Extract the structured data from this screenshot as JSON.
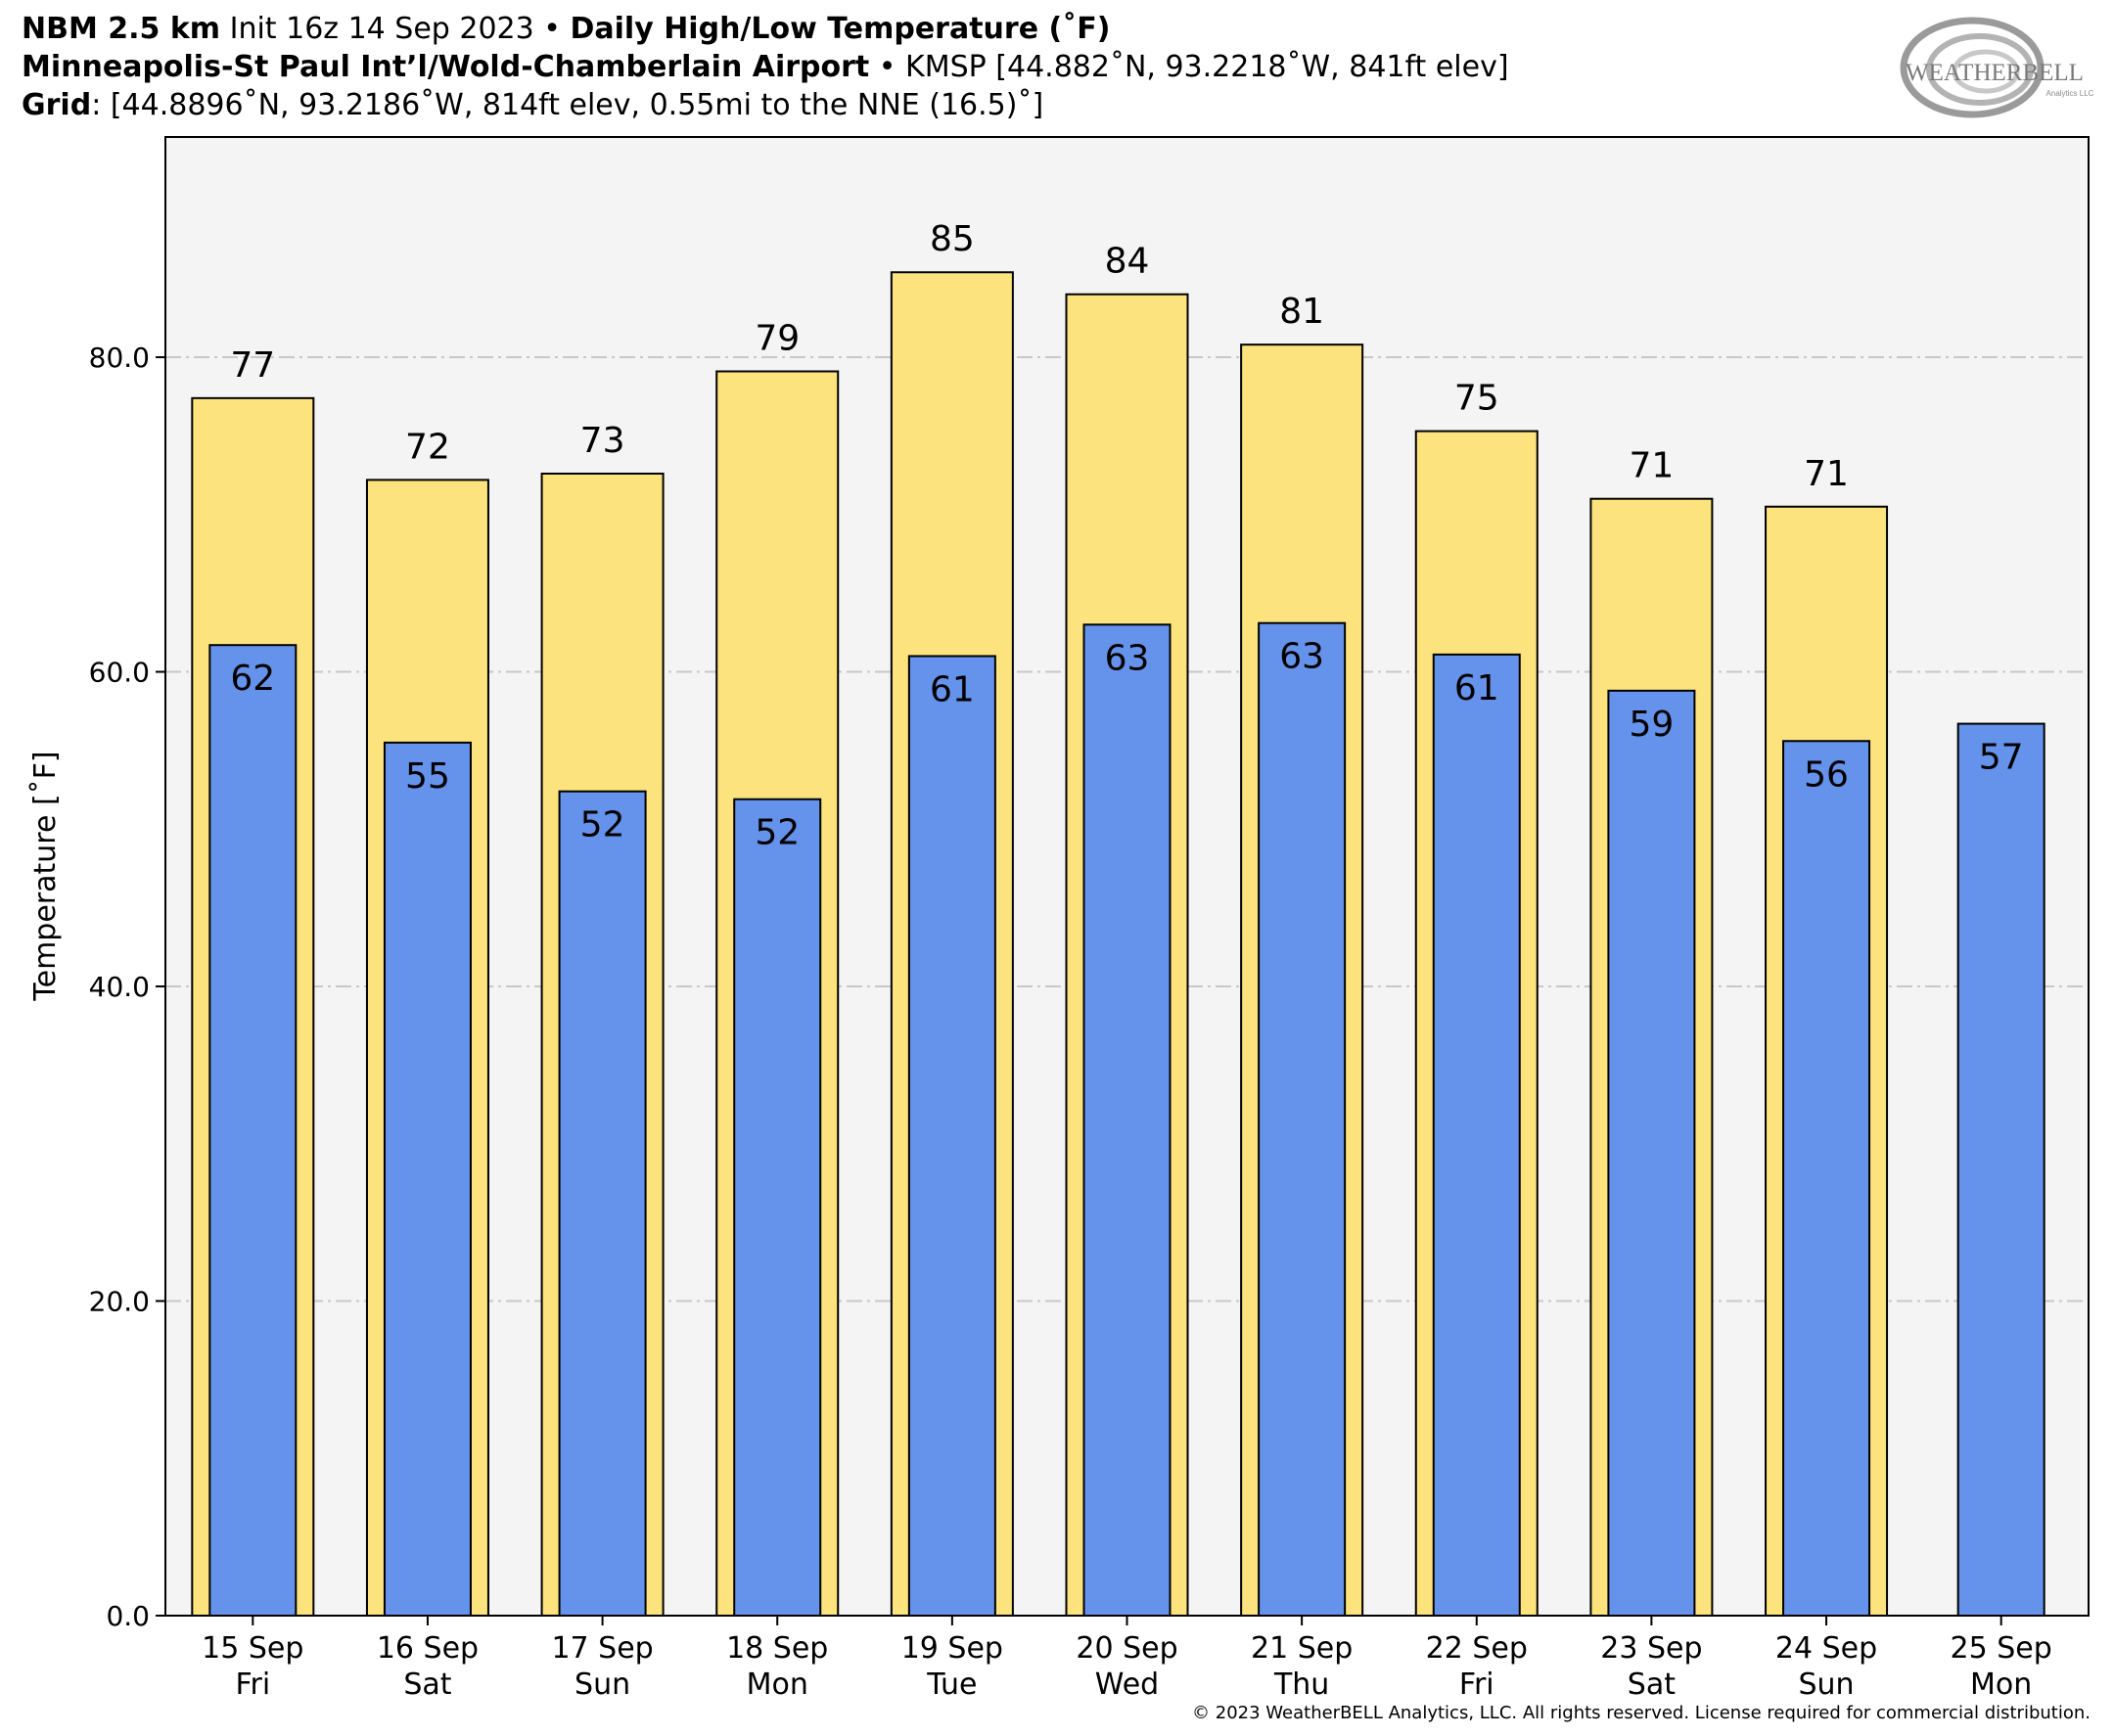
{
  "header": {
    "line1": {
      "model": "NBM 2.5 km",
      "init": " Init 16z 14 Sep 2023",
      "sep": " • ",
      "product": "Daily High/Low Temperature (˚F)"
    },
    "line2": {
      "station": "Minneapolis-St Paul Int’l/Wold-Chamberlain Airport",
      "sep": " • ",
      "info": "KMSP [44.882˚N, 93.2218˚W, 841ft elev]"
    },
    "line3": {
      "label": "Grid",
      "info": ": [44.8896˚N, 93.2186˚W, 814ft elev, 0.55mi to the NNE (16.5)˚]"
    }
  },
  "logo": {
    "text": "WEATHERBELL",
    "subtext": "Analytics LLC"
  },
  "copyright": "© 2023 WeatherBELL Analytics, LLC. All rights reserved. License required for commercial distribution.",
  "colors": {
    "high": "#FCE37D",
    "low": "#6592EA",
    "plot_bg": "#F4F4F5",
    "grid": "#C8C8C8"
  },
  "chart_data": {
    "type": "bar",
    "ylabel": "Temperature [˚F]",
    "ylim": [
      0,
      94
    ],
    "yticks": [
      "0.0",
      "20.0",
      "40.0",
      "60.0",
      "80.0"
    ],
    "grid": true,
    "categories": [
      [
        "15 Sep",
        "Fri"
      ],
      [
        "16 Sep",
        "Sat"
      ],
      [
        "17 Sep",
        "Sun"
      ],
      [
        "18 Sep",
        "Mon"
      ],
      [
        "19 Sep",
        "Tue"
      ],
      [
        "20 Sep",
        "Wed"
      ],
      [
        "21 Sep",
        "Thu"
      ],
      [
        "22 Sep",
        "Fri"
      ],
      [
        "23 Sep",
        "Sat"
      ],
      [
        "24 Sep",
        "Sun"
      ],
      [
        "25 Sep",
        "Mon"
      ]
    ],
    "series": [
      {
        "key": "high",
        "values": [
          77.4,
          72.2,
          72.6,
          79.1,
          85.4,
          84.0,
          80.8,
          75.3,
          71.0,
          70.5,
          null
        ],
        "labels": [
          "77",
          "72",
          "73",
          "79",
          "85",
          "84",
          "81",
          "75",
          "71",
          "71",
          null
        ]
      },
      {
        "key": "low",
        "values": [
          61.7,
          55.5,
          52.4,
          51.9,
          61.0,
          63.0,
          63.1,
          61.1,
          58.8,
          55.6,
          56.7
        ],
        "labels": [
          "62",
          "55",
          "52",
          "52",
          "61",
          "63",
          "63",
          "61",
          "59",
          "56",
          "57"
        ]
      }
    ]
  }
}
